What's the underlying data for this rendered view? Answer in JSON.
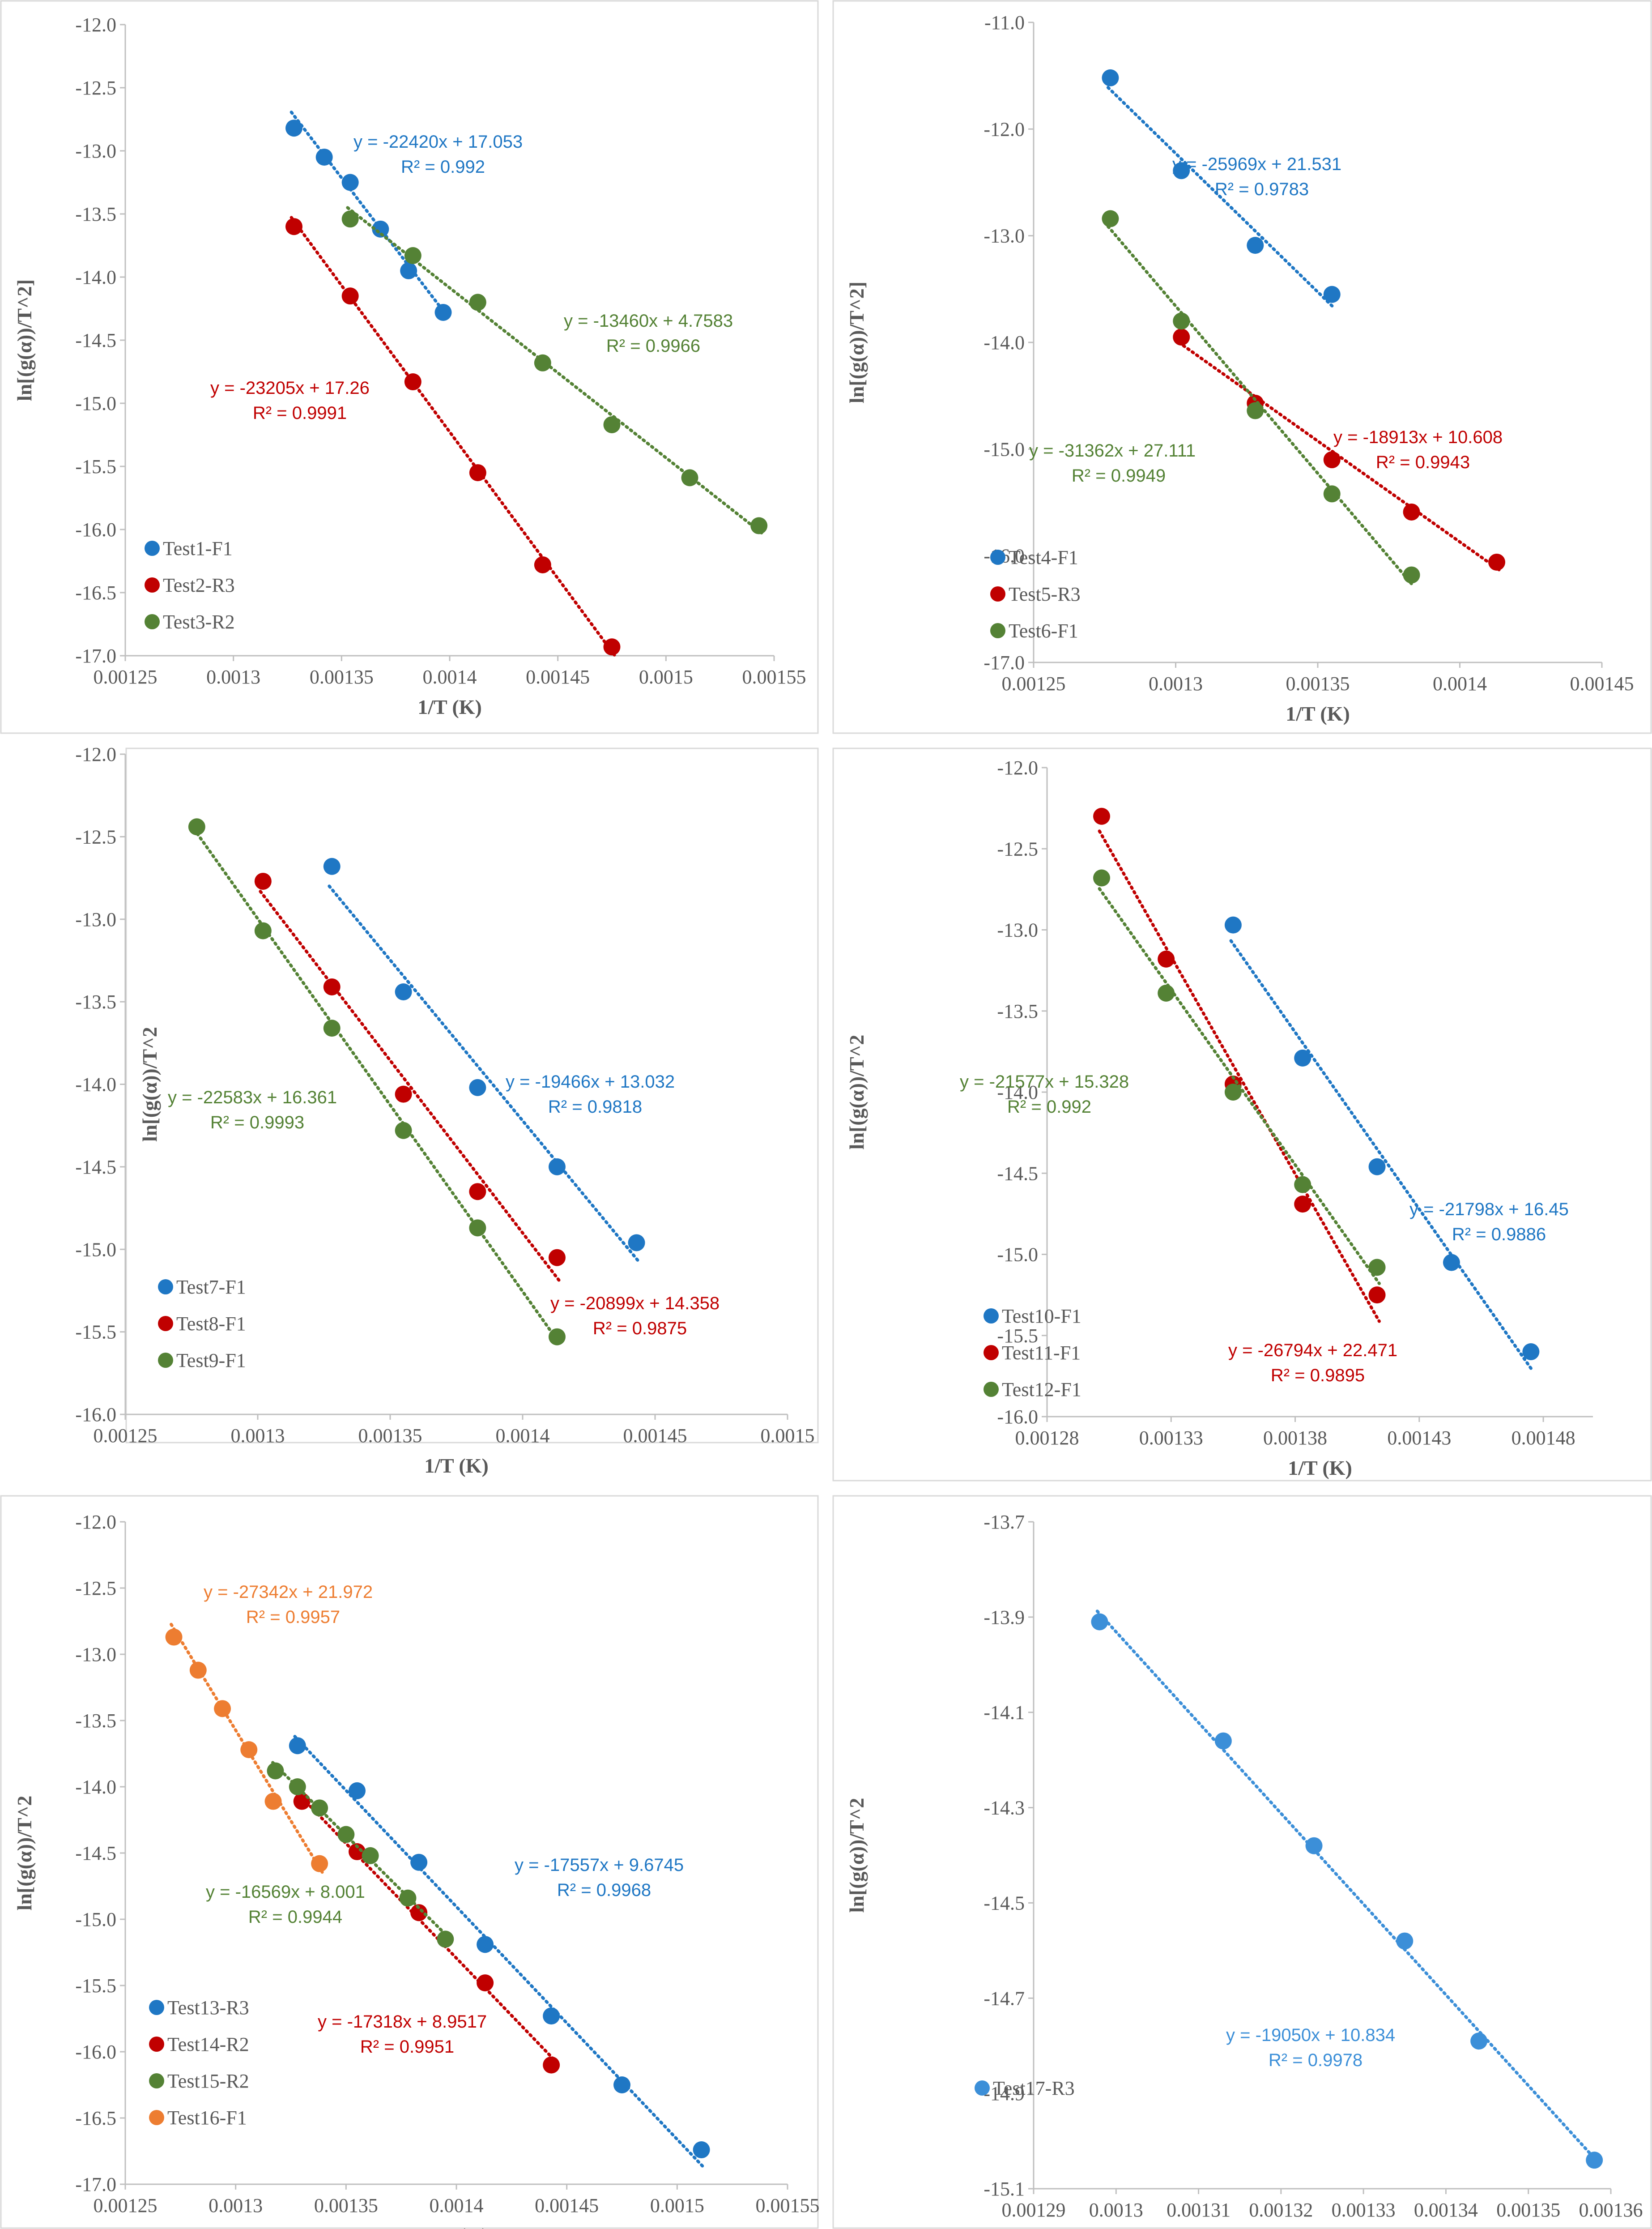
{
  "colors": {
    "blue": "#1f77c4",
    "red": "#c00000",
    "green": "#548235",
    "orange": "#ed7d31",
    "lightblue": "#3c8fd8"
  },
  "chart_data": [
    {
      "type": "scatter",
      "xlabel": "1/T (K)",
      "ylabel": "ln[(g(α))/T^2]",
      "xlim": [
        0.00125,
        0.00155
      ],
      "ylim": [
        -17.0,
        -12.0
      ],
      "xticks": [
        "0.00125",
        "0.0013",
        "0.00135",
        "0.0014",
        "0.00145",
        "0.0015",
        "0.00155"
      ],
      "yticks": [
        "-12.0",
        "-12.5",
        "-13.0",
        "-13.5",
        "-14.0",
        "-14.5",
        "-15.0",
        "-15.5",
        "-16.0",
        "-16.5",
        "-17.0"
      ],
      "legend_position": "bottom-left",
      "series": [
        {
          "name": "Test1-F1",
          "color": "blue",
          "slope": -22420,
          "intercept": 17.053,
          "x": [
            0.001328,
            0.001342,
            0.001354,
            0.001368,
            0.001381,
            0.001397
          ],
          "y": [
            -12.82,
            -13.05,
            -13.25,
            -13.62,
            -13.95,
            -14.28
          ],
          "equation": "y = -22420x + 17.053",
          "r2": "R² = 0.992"
        },
        {
          "name": "Test2-R3",
          "color": "red",
          "slope": -23205,
          "intercept": 17.26,
          "x": [
            0.001328,
            0.001354,
            0.001383,
            0.001413,
            0.001443,
            0.001475
          ],
          "y": [
            -13.6,
            -14.15,
            -14.83,
            -15.55,
            -16.28,
            -16.93
          ],
          "equation": "y = -23205x + 17.26",
          "r2": "R² = 0.9991"
        },
        {
          "name": "Test3-R2",
          "color": "green",
          "slope": -13460,
          "intercept": 4.7583,
          "x": [
            0.001354,
            0.001383,
            0.001413,
            0.001443,
            0.001475,
            0.001511,
            0.001543
          ],
          "y": [
            -13.54,
            -13.83,
            -14.2,
            -14.68,
            -15.17,
            -15.59,
            -15.97
          ],
          "equation": "y = -13460x + 4.7583",
          "r2": "R² = 0.9966"
        }
      ]
    },
    {
      "type": "scatter",
      "xlabel": "1/T (K)",
      "ylabel": "ln[(g(α))/T^2]",
      "xlim": [
        0.00125,
        0.00145
      ],
      "ylim": [
        -17.0,
        -11.0
      ],
      "xticks": [
        "0.00125",
        "0.0013",
        "0.00135",
        "0.0014",
        "0.00145"
      ],
      "yticks": [
        "-11.0",
        "-12.0",
        "-13.0",
        "-14.0",
        "-15.0",
        "-16.0",
        "-17.0"
      ],
      "legend_position": "bottom-left",
      "series": [
        {
          "name": "Test4-F1",
          "color": "blue",
          "slope": -25969,
          "intercept": 21.531,
          "x": [
            0.001277,
            0.001302,
            0.001328,
            0.001355
          ],
          "y": [
            -11.52,
            -12.39,
            -13.09,
            -13.55
          ],
          "equation": "y = -25969x + 21.531",
          "r2": "R² = 0.9783"
        },
        {
          "name": "Test5-R3",
          "color": "red",
          "slope": -18913,
          "intercept": 10.608,
          "x": [
            0.001302,
            0.001328,
            0.001355,
            0.001383,
            0.001413
          ],
          "y": [
            -13.95,
            -14.57,
            -15.1,
            -15.59,
            -16.06
          ],
          "equation": "y = -18913x + 10.608",
          "r2": "R² = 0.9943"
        },
        {
          "name": "Test6-F1",
          "color": "green",
          "slope": -31362,
          "intercept": 27.111,
          "x": [
            0.001277,
            0.001302,
            0.001328,
            0.001355,
            0.001383
          ],
          "y": [
            -12.84,
            -13.8,
            -14.64,
            -15.42,
            -16.18
          ],
          "equation": "y = -31362x + 27.111",
          "r2": "R² = 0.9949"
        }
      ]
    },
    {
      "type": "scatter",
      "xlabel": "1/T (K)",
      "ylabel": "ln[(g(α))/T^2",
      "xlim": [
        0.00125,
        0.0015
      ],
      "ylim": [
        -16.0,
        -12.0
      ],
      "xticks": [
        "0.00125",
        "0.0013",
        "0.00135",
        "0.0014",
        "0.00145",
        "0.0015"
      ],
      "yticks": [
        "-12.0",
        "-12.5",
        "-13.0",
        "-13.5",
        "-14.0",
        "-14.5",
        "-15.0",
        "-15.5",
        "-16.0"
      ],
      "legend_position": "bottom-left",
      "series": [
        {
          "name": "Test7-F1",
          "color": "blue",
          "slope": -19466,
          "intercept": 13.032,
          "x": [
            0.001328,
            0.001355,
            0.001383,
            0.001413,
            0.001443
          ],
          "y": [
            -12.68,
            -13.44,
            -14.02,
            -14.5,
            -14.96
          ],
          "equation": "y = -19466x + 13.032",
          "r2": "R² = 0.9818"
        },
        {
          "name": "Test8-F1",
          "color": "red",
          "slope": -20899,
          "intercept": 14.358,
          "x": [
            0.001302,
            0.001328,
            0.001355,
            0.001383,
            0.001413
          ],
          "y": [
            -12.77,
            -13.41,
            -14.06,
            -14.65,
            -15.05
          ],
          "equation": "y = -20899x + 14.358",
          "r2": "R² = 0.9875"
        },
        {
          "name": "Test9-F1",
          "color": "green",
          "slope": -22583,
          "intercept": 16.361,
          "x": [
            0.001277,
            0.001302,
            0.001328,
            0.001355,
            0.001383,
            0.001413
          ],
          "y": [
            -12.44,
            -13.07,
            -13.66,
            -14.28,
            -14.87,
            -15.53
          ],
          "equation": "y = -22583x + 16.361",
          "r2": "R² = 0.9993"
        }
      ]
    },
    {
      "type": "scatter",
      "xlabel": "1/T (K)",
      "ylabel": "ln[(g(α))/T^2",
      "xlim": [
        0.00128,
        0.0015
      ],
      "ylim": [
        -16.0,
        -12.0
      ],
      "xticks": [
        "0.00128",
        "0.00133",
        "0.00138",
        "0.00143",
        "0.00148"
      ],
      "xtick_values": [
        0.00128,
        0.00133,
        0.00138,
        0.00143,
        0.00148
      ],
      "yticks": [
        "-12.0",
        "-12.5",
        "-13.0",
        "-13.5",
        "-14.0",
        "-14.5",
        "-15.0",
        "-15.5",
        "-16.0"
      ],
      "legend_position": "bottom-left",
      "series": [
        {
          "name": "Test10-F1",
          "color": "blue",
          "slope": -21798,
          "intercept": 16.45,
          "x": [
            0.001355,
            0.001383,
            0.001413,
            0.001443,
            0.001475
          ],
          "y": [
            -12.97,
            -13.79,
            -14.46,
            -15.05,
            -15.6
          ],
          "equation": "y = -21798x + 16.45",
          "r2": "R² = 0.9886"
        },
        {
          "name": "Test11-F1",
          "color": "red",
          "slope": -26794,
          "intercept": 22.471,
          "x": [
            0.001302,
            0.001328,
            0.001355,
            0.001383,
            0.001413
          ],
          "y": [
            -12.3,
            -13.18,
            -13.95,
            -14.69,
            -15.25
          ],
          "equation": "y = -26794x + 22.471",
          "r2": "R² = 0.9895"
        },
        {
          "name": "Test12-F1",
          "color": "green",
          "slope": -21577,
          "intercept": 15.328,
          "x": [
            0.001302,
            0.001328,
            0.001355,
            0.001383,
            0.001413
          ],
          "y": [
            -12.68,
            -13.39,
            -14.0,
            -14.57,
            -15.08
          ],
          "equation": "y = -21577x + 15.328",
          "r2": "R² = 0.992"
        }
      ]
    },
    {
      "type": "scatter",
      "xlabel": "1/T (K)",
      "ylabel": "ln[(g(α))/T^2",
      "xlim": [
        0.00125,
        0.00155
      ],
      "ylim": [
        -17.0,
        -12.0
      ],
      "xticks": [
        "0.00125",
        "0.0013",
        "0.00135",
        "0.0014",
        "0.00145",
        "0.0015",
        "0.00155"
      ],
      "yticks": [
        "-12.0",
        "-12.5",
        "-13.0",
        "-13.5",
        "-14.0",
        "-14.5",
        "-15.0",
        "-15.5",
        "-16.0",
        "-16.5",
        "-17.0"
      ],
      "legend_position": "bottom-left",
      "series": [
        {
          "name": "Test13-R3",
          "color": "blue",
          "slope": -17557,
          "intercept": 9.6745,
          "x": [
            0.001328,
            0.001355,
            0.001383,
            0.001413,
            0.001443,
            0.001475,
            0.001511
          ],
          "y": [
            -13.69,
            -14.03,
            -14.57,
            -15.19,
            -15.73,
            -16.25,
            -16.74
          ],
          "equation": "y = -17557x + 9.6745",
          "r2": "R² = 0.9968"
        },
        {
          "name": "Test14-R2",
          "color": "red",
          "slope": -17318,
          "intercept": 8.9517,
          "x": [
            0.00133,
            0.001355,
            0.001383,
            0.001413,
            0.001443
          ],
          "y": [
            -14.11,
            -14.49,
            -14.95,
            -15.48,
            -16.1
          ],
          "equation": "y = -17318x + 8.9517",
          "r2": "R² = 0.9951"
        },
        {
          "name": "Test15-R2",
          "color": "green",
          "slope": -16569,
          "intercept": 8.001,
          "x": [
            0.001318,
            0.001328,
            0.001338,
            0.00135,
            0.001361,
            0.001378,
            0.001395
          ],
          "y": [
            -13.88,
            -14.0,
            -14.16,
            -14.36,
            -14.52,
            -14.84,
            -15.15
          ],
          "equation": "y = -16569x + 8.001",
          "r2": "R² = 0.9944"
        },
        {
          "name": "Test16-F1",
          "color": "orange",
          "slope": -27342,
          "intercept": 21.972,
          "x": [
            0.001272,
            0.001283,
            0.001294,
            0.001306,
            0.001317,
            0.001338
          ],
          "y": [
            -12.87,
            -13.12,
            -13.41,
            -13.72,
            -14.11,
            -14.58
          ],
          "equation": "y = -27342x + 21.972",
          "r2": "R² = 0.9957"
        }
      ]
    },
    {
      "type": "scatter",
      "xlabel": "1/T (K)",
      "ylabel": "ln[(g(α))/T^2",
      "xlim": [
        0.00129,
        0.00136
      ],
      "ylim": [
        -15.1,
        -13.7
      ],
      "xticks": [
        "0.00129",
        "0.0013",
        "0.00131",
        "0.00132",
        "0.00133",
        "0.00134",
        "0.00135",
        "0.00136"
      ],
      "yticks": [
        "-13.7",
        "-13.9",
        "-14.1",
        "-14.3",
        "-14.5",
        "-14.7",
        "-14.9",
        "-15.1"
      ],
      "legend_position": "bottom-left",
      "series": [
        {
          "name": "Test17-R3",
          "color": "lightblue",
          "slope": -19050,
          "intercept": 10.834,
          "x": [
            0.001298,
            0.001313,
            0.001324,
            0.001335,
            0.001344,
            0.001358
          ],
          "y": [
            -13.91,
            -14.16,
            -14.38,
            -14.58,
            -14.79,
            -15.04
          ],
          "equation": "y = -19050x + 10.834",
          "r2": "R² = 0.9978"
        }
      ]
    }
  ]
}
